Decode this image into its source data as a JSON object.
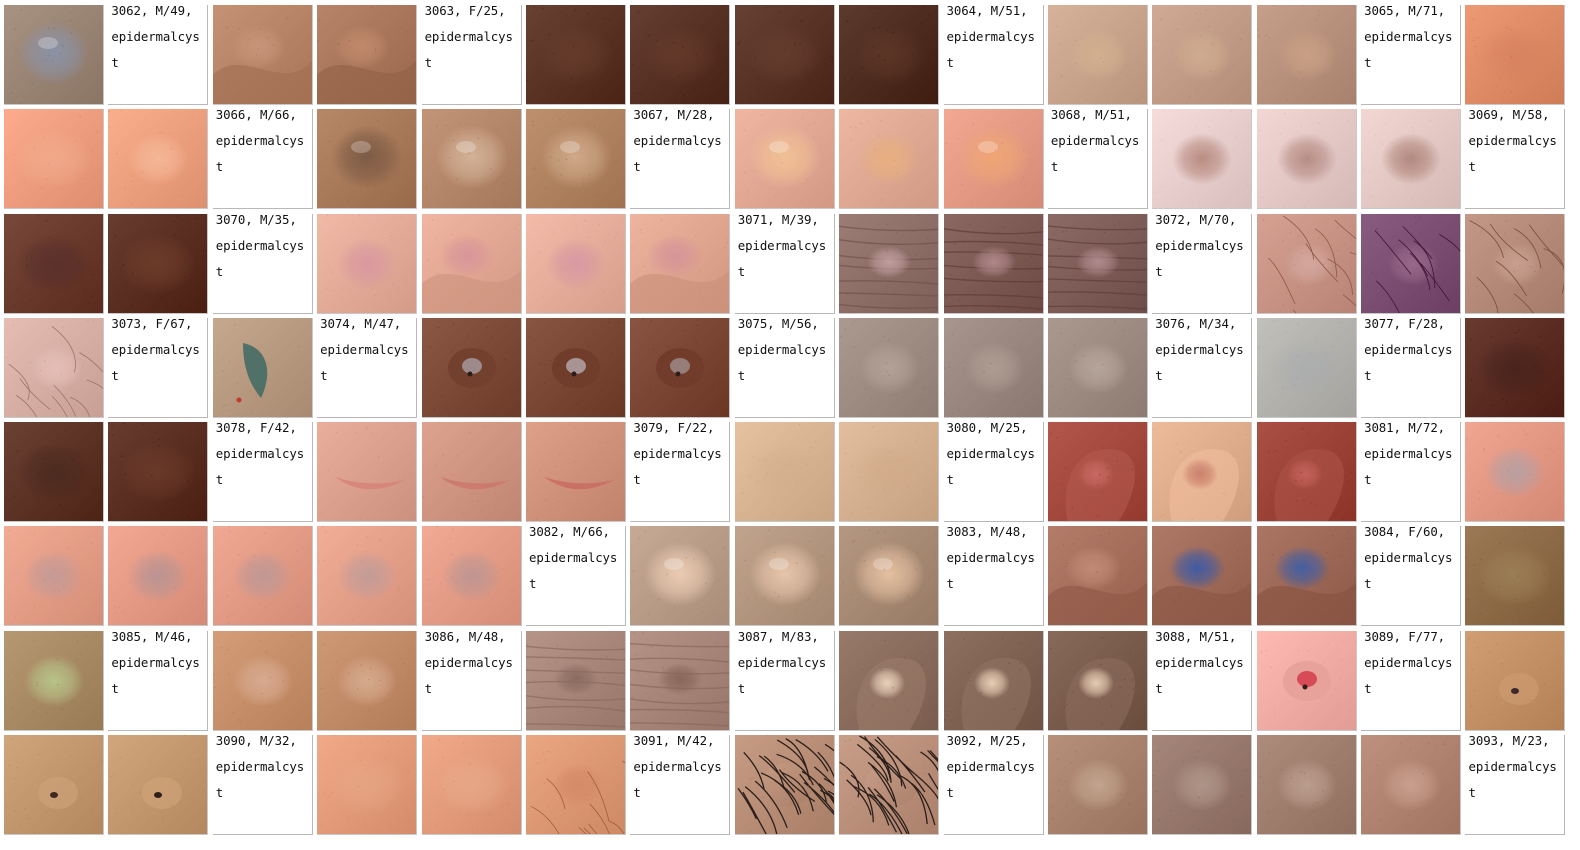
{
  "grid": {
    "columns": 15,
    "cells": [
      {
        "kind": "img",
        "base": "#9a8474",
        "spot": "#8a93a8",
        "shape": "nodule",
        "icon": "lesion-photo"
      },
      {
        "kind": "label",
        "lines": [
          "3062, M/49,",
          "epidermalcys",
          "t"
        ]
      },
      {
        "kind": "img",
        "base": "#b88468",
        "spot": "#c8957a",
        "shape": "fold",
        "icon": "lesion-photo"
      },
      {
        "kind": "img",
        "base": "#a9765c",
        "spot": "#c28a6c",
        "shape": "fold",
        "icon": "lesion-photo"
      },
      {
        "kind": "label",
        "lines": [
          "3063, F/25,",
          "epidermalcys",
          "t"
        ]
      },
      {
        "kind": "img",
        "base": "#5a3324",
        "spot": "#6d4232",
        "shape": "flat",
        "icon": "lesion-photo"
      },
      {
        "kind": "img",
        "base": "#573124",
        "spot": "#6c3f2e",
        "shape": "flat",
        "icon": "lesion-photo"
      },
      {
        "kind": "img",
        "base": "#583326",
        "spot": "#6e4333",
        "shape": "flat",
        "icon": "lesion-photo"
      },
      {
        "kind": "img",
        "base": "#4e2c20",
        "spot": "#673c2b",
        "shape": "flat",
        "icon": "lesion-photo"
      },
      {
        "kind": "label",
        "lines": [
          "3064, M/51,",
          "epidermalcys",
          "t"
        ]
      },
      {
        "kind": "img",
        "base": "#c9a48c",
        "spot": "#d3b08f",
        "shape": "bump",
        "icon": "lesion-photo"
      },
      {
        "kind": "img",
        "base": "#c29c86",
        "spot": "#d0ac90",
        "shape": "bump",
        "icon": "lesion-photo"
      },
      {
        "kind": "img",
        "base": "#b8917d",
        "spot": "#caa184",
        "shape": "bump",
        "icon": "lesion-photo"
      },
      {
        "kind": "label",
        "lines": [
          "3065, M/71,",
          "epidermalcys",
          "t"
        ]
      },
      {
        "kind": "img",
        "base": "#df8c66",
        "spot": "#d47e5c",
        "shape": "flat",
        "icon": "lesion-photo"
      },
      {
        "kind": "img",
        "base": "#ee9e7e",
        "spot": "#f3b093",
        "shape": "flat",
        "icon": "lesion-photo"
      },
      {
        "kind": "img",
        "base": "#eda07e",
        "spot": "#f5b898",
        "shape": "bump",
        "icon": "lesion-photo"
      },
      {
        "kind": "label",
        "lines": [
          "3066, M/66,",
          "epidermalcys",
          "t"
        ]
      },
      {
        "kind": "img",
        "base": "#a97a5a",
        "spot": "#7b5a44",
        "shape": "nodule",
        "icon": "lesion-photo"
      },
      {
        "kind": "img",
        "base": "#b5876a",
        "spot": "#d4b49a",
        "shape": "nodule",
        "icon": "lesion-photo"
      },
      {
        "kind": "img",
        "base": "#b0825f",
        "spot": "#d0ab8b",
        "shape": "nodule",
        "icon": "lesion-photo"
      },
      {
        "kind": "label",
        "lines": [
          "3067, M/28,",
          "epidermalcys",
          "t"
        ]
      },
      {
        "kind": "img",
        "base": "#e2a894",
        "spot": "#f1c194",
        "shape": "nodule",
        "icon": "lesion-photo"
      },
      {
        "kind": "img",
        "base": "#dfa993",
        "spot": "#e8b07e",
        "shape": "bump",
        "icon": "lesion-photo"
      },
      {
        "kind": "img",
        "base": "#e49a84",
        "spot": "#f0a674",
        "shape": "nodule",
        "icon": "lesion-photo"
      },
      {
        "kind": "label",
        "lines": [
          "3068, M/51,",
          "epidermalcys",
          "t"
        ]
      },
      {
        "kind": "img",
        "base": "#e8cfcd",
        "spot": "#b7897e",
        "shape": "bump",
        "icon": "lesion-photo"
      },
      {
        "kind": "img",
        "base": "#e4c9c6",
        "spot": "#b58a82",
        "shape": "bump",
        "icon": "lesion-photo"
      },
      {
        "kind": "img",
        "base": "#e4c9c5",
        "spot": "#b0857b",
        "shape": "bump",
        "icon": "lesion-photo"
      },
      {
        "kind": "label",
        "lines": [
          "3069, M/58,",
          "epidermalcys",
          "t"
        ]
      },
      {
        "kind": "img",
        "base": "#6a3a2c",
        "spot": "#4e2a2b",
        "shape": "flat",
        "icon": "lesion-photo"
      },
      {
        "kind": "img",
        "base": "#5a2f22",
        "spot": "#7a4430",
        "shape": "flat",
        "icon": "lesion-photo"
      },
      {
        "kind": "label",
        "lines": [
          "3070, M/35,",
          "epidermalcys",
          "t"
        ]
      },
      {
        "kind": "img",
        "base": "#e3ab98",
        "spot": "#d998a0",
        "shape": "bump",
        "icon": "lesion-photo"
      },
      {
        "kind": "img",
        "base": "#e2a893",
        "spot": "#d9949a",
        "shape": "fold",
        "icon": "lesion-photo"
      },
      {
        "kind": "img",
        "base": "#e5ad9a",
        "spot": "#d898a2",
        "shape": "bump",
        "icon": "lesion-photo"
      },
      {
        "kind": "img",
        "base": "#e0a690",
        "spot": "#d59499",
        "shape": "fold",
        "icon": "lesion-photo"
      },
      {
        "kind": "label",
        "lines": [
          "3071, M/39,",
          "epidermalcys",
          "t"
        ]
      },
      {
        "kind": "img",
        "base": "#8e6f68",
        "spot": "#c3a0a2",
        "shape": "wrinkle",
        "icon": "lesion-photo"
      },
      {
        "kind": "img",
        "base": "#7d5a54",
        "spot": "#b3898d",
        "shape": "wrinkle",
        "icon": "lesion-photo"
      },
      {
        "kind": "img",
        "base": "#7e5c57",
        "spot": "#b38c90",
        "shape": "wrinkle",
        "icon": "lesion-photo"
      },
      {
        "kind": "label",
        "lines": [
          "3072, M/70,",
          "epidermalcys",
          "t"
        ]
      },
      {
        "kind": "img",
        "base": "#c89384",
        "spot": "#d4a8a0",
        "shape": "hair",
        "icon": "lesion-photo"
      },
      {
        "kind": "img",
        "base": "#7b4e72",
        "spot": "#9b6a8a",
        "shape": "hair",
        "icon": "lesion-photo"
      },
      {
        "kind": "img",
        "base": "#b58a78",
        "spot": "#c9a091",
        "shape": "hair",
        "icon": "lesion-photo"
      },
      {
        "kind": "img",
        "base": "#d8afa5",
        "spot": "#e5bfb8",
        "shape": "hair",
        "icon": "lesion-photo"
      },
      {
        "kind": "label",
        "lines": [
          "3073, F/67,",
          "epidermalcys",
          "t"
        ]
      },
      {
        "kind": "img",
        "base": "#b89a80",
        "spot": "#3e6a64",
        "shape": "tattoo",
        "icon": "lesion-photo"
      },
      {
        "kind": "label",
        "lines": [
          "3074, M/47,",
          "epidermalcys",
          "t"
        ]
      },
      {
        "kind": "img",
        "base": "#7d4a37",
        "spot": "#9d8a8a",
        "shape": "crust",
        "icon": "lesion-photo"
      },
      {
        "kind": "img",
        "base": "#7a4734",
        "spot": "#a89494",
        "shape": "crust",
        "icon": "lesion-photo"
      },
      {
        "kind": "img",
        "base": "#7b4734",
        "spot": "#967d7a",
        "shape": "crust",
        "icon": "lesion-photo"
      },
      {
        "kind": "label",
        "lines": [
          "3075, M/56,",
          "epidermalcys",
          "t"
        ]
      },
      {
        "kind": "img",
        "base": "#9e8c82",
        "spot": "#b3a298",
        "shape": "bump",
        "icon": "lesion-photo"
      },
      {
        "kind": "img",
        "base": "#9a8880",
        "spot": "#ae9d93",
        "shape": "bump",
        "icon": "lesion-photo"
      },
      {
        "kind": "img",
        "base": "#9d8b82",
        "spot": "#b7a69c",
        "shape": "bump",
        "icon": "lesion-photo"
      },
      {
        "kind": "label",
        "lines": [
          "3076, M/34,",
          "epidermalcys",
          "t"
        ]
      },
      {
        "kind": "img",
        "base": "#b4b2ad",
        "spot": "#a5aab0",
        "shape": "flat",
        "icon": "lesion-photo"
      },
      {
        "kind": "label",
        "lines": [
          "3077, F/28,",
          "epidermalcys",
          "t"
        ]
      },
      {
        "kind": "img",
        "base": "#5a2c22",
        "spot": "#3e1f18",
        "shape": "flat",
        "icon": "lesion-photo"
      },
      {
        "kind": "img",
        "base": "#5d3325",
        "spot": "#42251c",
        "shape": "flat",
        "icon": "lesion-photo"
      },
      {
        "kind": "img",
        "base": "#5a2f22",
        "spot": "#74402e",
        "shape": "flat",
        "icon": "lesion-photo"
      },
      {
        "kind": "label",
        "lines": [
          "3078, F/42,",
          "epidermalcys",
          "t"
        ]
      },
      {
        "kind": "img",
        "base": "#dba18e",
        "spot": "#d78279",
        "shape": "scar",
        "icon": "lesion-photo"
      },
      {
        "kind": "img",
        "base": "#cf9580",
        "spot": "#cd776c",
        "shape": "scar",
        "icon": "lesion-photo"
      },
      {
        "kind": "img",
        "base": "#d1927c",
        "spot": "#c96c63",
        "shape": "scar",
        "icon": "lesion-photo"
      },
      {
        "kind": "label",
        "lines": [
          "3079, F/22,",
          "epidermalcys",
          "t"
        ]
      },
      {
        "kind": "img",
        "base": "#d8b493",
        "spot": "#d2ad8b",
        "shape": "flat",
        "icon": "lesion-photo"
      },
      {
        "kind": "img",
        "base": "#d5b090",
        "spot": "#cfa988",
        "shape": "flat",
        "icon": "lesion-photo"
      },
      {
        "kind": "label",
        "lines": [
          "3080, M/25,",
          "epidermalcys",
          "t"
        ]
      },
      {
        "kind": "img",
        "base": "#a5493e",
        "spot": "#c96a64",
        "shape": "ear",
        "icon": "lesion-photo"
      },
      {
        "kind": "img",
        "base": "#e0ad8c",
        "spot": "#c97d6a",
        "shape": "ear",
        "icon": "lesion-photo"
      },
      {
        "kind": "img",
        "base": "#9c4236",
        "spot": "#c4625b",
        "shape": "ear",
        "icon": "lesion-photo"
      },
      {
        "kind": "label",
        "lines": [
          "3081, M/72,",
          "epidermalcys",
          "t"
        ]
      },
      {
        "kind": "img",
        "base": "#e39884",
        "spot": "#b6a0a5",
        "shape": "bump",
        "icon": "lesion-photo"
      },
      {
        "kind": "img",
        "base": "#e49d86",
        "spot": "#c39a97",
        "shape": "bump",
        "icon": "lesion-photo"
      },
      {
        "kind": "img",
        "base": "#e49a85",
        "spot": "#b89394",
        "shape": "bump",
        "icon": "lesion-photo"
      },
      {
        "kind": "img",
        "base": "#e39b85",
        "spot": "#bd9796",
        "shape": "bump",
        "icon": "lesion-photo"
      },
      {
        "kind": "img",
        "base": "#e5a08a",
        "spot": "#c19c98",
        "shape": "bump",
        "icon": "lesion-photo"
      },
      {
        "kind": "img",
        "base": "#e49c86",
        "spot": "#bd9593",
        "shape": "bump",
        "icon": "lesion-photo"
      },
      {
        "kind": "label",
        "lines": [
          "3082, M/66,",
          "epidermalcys",
          "t"
        ]
      },
      {
        "kind": "img",
        "base": "#b89c88",
        "spot": "#edcdb5",
        "shape": "nodule",
        "icon": "lesion-photo"
      },
      {
        "kind": "img",
        "base": "#b3967f",
        "spot": "#e9c7ac",
        "shape": "nodule",
        "icon": "lesion-photo"
      },
      {
        "kind": "img",
        "base": "#a78a74",
        "spot": "#e8c2a3",
        "shape": "nodule",
        "icon": "lesion-photo"
      },
      {
        "kind": "label",
        "lines": [
          "3083, M/48,",
          "epidermalcys",
          "t"
        ]
      },
      {
        "kind": "img",
        "base": "#a56f5c",
        "spot": "#c28b78",
        "shape": "fold",
        "icon": "lesion-photo"
      },
      {
        "kind": "img",
        "base": "#a06b58",
        "spot": "#3b5aa8",
        "shape": "fold",
        "icon": "lesion-photo"
      },
      {
        "kind": "img",
        "base": "#9d6856",
        "spot": "#3f5ea6",
        "shape": "fold",
        "icon": "lesion-photo"
      },
      {
        "kind": "label",
        "lines": [
          "3084, F/60,",
          "epidermalcys",
          "t"
        ]
      },
      {
        "kind": "img",
        "base": "#8e6b48",
        "spot": "#a48a5c",
        "shape": "flat",
        "icon": "lesion-photo"
      },
      {
        "kind": "img",
        "base": "#a88a63",
        "spot": "#b8c68a",
        "shape": "bump",
        "icon": "lesion-photo"
      },
      {
        "kind": "label",
        "lines": [
          "3085, M/46,",
          "epidermalcys",
          "t"
        ]
      },
      {
        "kind": "img",
        "base": "#c7906a",
        "spot": "#d9ab93",
        "shape": "bump",
        "icon": "lesion-photo"
      },
      {
        "kind": "img",
        "base": "#c28b68",
        "spot": "#d7ab90",
        "shape": "bump",
        "icon": "lesion-photo"
      },
      {
        "kind": "label",
        "lines": [
          "3086, M/48,",
          "epidermalcys",
          "t"
        ]
      },
      {
        "kind": "img",
        "base": "#a8877a",
        "spot": "#8a6a5f",
        "shape": "wrinkle",
        "icon": "lesion-photo"
      },
      {
        "kind": "img",
        "base": "#a78679",
        "spot": "#876558",
        "shape": "wrinkle",
        "icon": "lesion-photo"
      },
      {
        "kind": "label",
        "lines": [
          "3087, M/83,",
          "epidermalcys",
          "t"
        ]
      },
      {
        "kind": "img",
        "base": "#8a6c5c",
        "spot": "#edd6bf",
        "shape": "ear",
        "icon": "lesion-photo"
      },
      {
        "kind": "img",
        "base": "#7f6252",
        "spot": "#ecd3ba",
        "shape": "ear",
        "icon": "lesion-photo"
      },
      {
        "kind": "img",
        "base": "#7a5c4c",
        "spot": "#ebd1b8",
        "shape": "ear",
        "icon": "lesion-photo"
      },
      {
        "kind": "label",
        "lines": [
          "3088, M/51,",
          "epidermalcys",
          "t"
        ]
      },
      {
        "kind": "img",
        "base": "#f1aca5",
        "spot": "#d64b56",
        "shape": "crust",
        "icon": "lesion-photo"
      },
      {
        "kind": "label",
        "lines": [
          "3089, F/77,",
          "epidermalcys",
          "t"
        ]
      },
      {
        "kind": "img",
        "base": "#c39066",
        "spot": "#3a2a2a",
        "shape": "pore",
        "icon": "lesion-photo"
      },
      {
        "kind": "img",
        "base": "#c3976e",
        "spot": "#3c2924",
        "shape": "pore",
        "icon": "lesion-photo"
      },
      {
        "kind": "img",
        "base": "#c4986e",
        "spot": "#2f1f1a",
        "shape": "pore",
        "icon": "lesion-photo"
      },
      {
        "kind": "label",
        "lines": [
          "3090, M/32,",
          "epidermalcys",
          "t"
        ]
      },
      {
        "kind": "img",
        "base": "#e39c7a",
        "spot": "#e8aa8a",
        "shape": "flat",
        "icon": "lesion-photo"
      },
      {
        "kind": "img",
        "base": "#e39c7b",
        "spot": "#eab091",
        "shape": "flat",
        "icon": "lesion-photo"
      },
      {
        "kind": "img",
        "base": "#dd9874",
        "spot": "#d48a66",
        "shape": "hair",
        "icon": "lesion-photo"
      },
      {
        "kind": "label",
        "lines": [
          "3091, M/42,",
          "epidermalcys",
          "t"
        ]
      },
      {
        "kind": "img",
        "base": "#b98e76",
        "spot": "#2a1e1a",
        "shape": "darkhair",
        "icon": "lesion-photo"
      },
      {
        "kind": "img",
        "base": "#bb907a",
        "spot": "#2a1e1a",
        "shape": "darkhair",
        "icon": "lesion-photo"
      },
      {
        "kind": "label",
        "lines": [
          "3092, M/25,",
          "epidermalcys",
          "t"
        ]
      },
      {
        "kind": "img",
        "base": "#a8826c",
        "spot": "#c4a590",
        "shape": "bump",
        "icon": "lesion-photo"
      },
      {
        "kind": "img",
        "base": "#97786c",
        "spot": "#b0978a",
        "shape": "bump",
        "icon": "lesion-photo"
      },
      {
        "kind": "img",
        "base": "#a07e6e",
        "spot": "#bc9f90",
        "shape": "bump",
        "icon": "lesion-photo"
      },
      {
        "kind": "img",
        "base": "#b08270",
        "spot": "#caa08e",
        "shape": "bump",
        "icon": "lesion-photo"
      },
      {
        "kind": "label",
        "lines": [
          "3093, M/23,",
          "epidermalcys",
          "t"
        ]
      }
    ]
  }
}
